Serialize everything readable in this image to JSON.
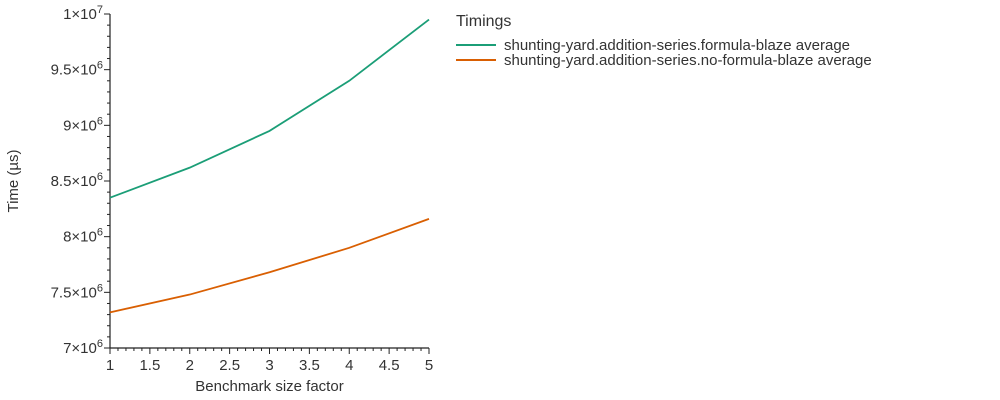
{
  "chart_data": {
    "type": "line",
    "xlabel": "Benchmark size factor",
    "ylabel": "Time (µs)",
    "xlim": [
      1,
      5
    ],
    "ylim": [
      7000000,
      10000000
    ],
    "x_ticks": [
      {
        "value": 1,
        "label": "1"
      },
      {
        "value": 1.5,
        "label": "1.5"
      },
      {
        "value": 2,
        "label": "2"
      },
      {
        "value": 2.5,
        "label": "2.5"
      },
      {
        "value": 3,
        "label": "3"
      },
      {
        "value": 3.5,
        "label": "3.5"
      },
      {
        "value": 4,
        "label": "4"
      },
      {
        "value": 4.5,
        "label": "4.5"
      },
      {
        "value": 5,
        "label": "5"
      }
    ],
    "y_ticks": [
      {
        "value": 7000000,
        "base": "7×10",
        "exp": "6"
      },
      {
        "value": 7500000,
        "base": "7.5×10",
        "exp": "6"
      },
      {
        "value": 8000000,
        "base": "8×10",
        "exp": "6"
      },
      {
        "value": 8500000,
        "base": "8.5×10",
        "exp": "6"
      },
      {
        "value": 9000000,
        "base": "9×10",
        "exp": "6"
      },
      {
        "value": 9500000,
        "base": "9.5×10",
        "exp": "6"
      },
      {
        "value": 10000000,
        "base": "1×10",
        "exp": "7"
      }
    ],
    "legend_title": "Timings",
    "legend_position": "top-right-outside",
    "series": [
      {
        "name": "shunting-yard.addition-series.formula-blaze average",
        "color": "#1b9e77",
        "x": [
          1,
          2,
          3,
          4,
          5
        ],
        "values": [
          8350000,
          8620000,
          8950000,
          9400000,
          9950000
        ]
      },
      {
        "name": "shunting-yard.addition-series.no-formula-blaze average",
        "color": "#d95f02",
        "x": [
          1,
          2,
          3,
          4,
          5
        ],
        "values": [
          7320000,
          7480000,
          7680000,
          7900000,
          8160000
        ]
      }
    ]
  }
}
